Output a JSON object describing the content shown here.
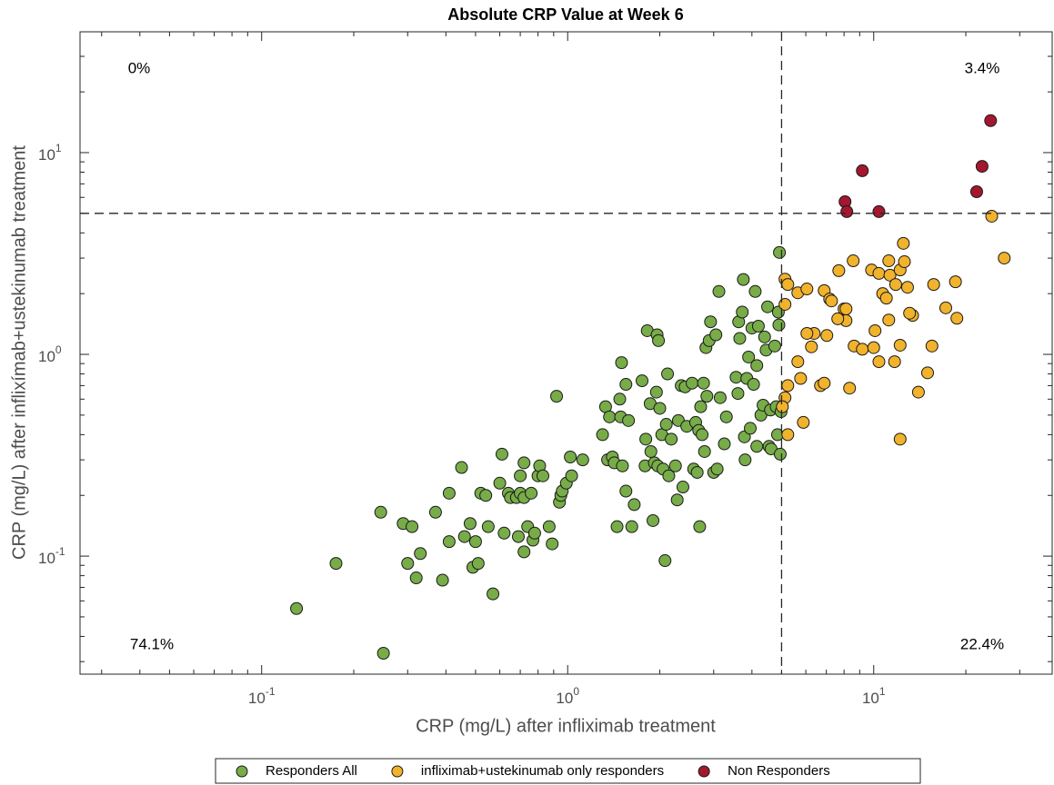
{
  "chart_data": {
    "type": "scatter",
    "title": "Absolute CRP Value at Week 6",
    "x_label": "CRP (mg/L) after infliximab treatment",
    "y_label": "CRP (mg/L) after inflixímab+ustekinumab treatment",
    "xscale": "log",
    "yscale": "log",
    "xlim": [
      0.0255,
      38.3
    ],
    "ylim": [
      0.026,
      39.7
    ],
    "xticks": [
      {
        "value": 0.1,
        "label": "10",
        "exponent": "-1"
      },
      {
        "value": 1,
        "label": "10",
        "exponent": "0"
      },
      {
        "value": 10,
        "label": "10",
        "exponent": "1"
      }
    ],
    "yticks": [
      {
        "value": 0.1,
        "label": "10",
        "exponent": "-1"
      },
      {
        "value": 1,
        "label": "10",
        "exponent": "0"
      },
      {
        "value": 10,
        "label": "10",
        "exponent": "1"
      }
    ],
    "threshold_x": 5,
    "threshold_y": 5,
    "annotations": [
      {
        "text": "0%",
        "corner": "top-left"
      },
      {
        "text": "3.4%",
        "corner": "top-right"
      },
      {
        "text": "74.1%",
        "corner": "bottom-left"
      },
      {
        "text": "22.4%",
        "corner": "bottom-right"
      }
    ],
    "legend": "bottom-outside",
    "series": [
      {
        "name": "Responders All",
        "color": "#77ac48",
        "x": [
          0.13,
          0.175,
          0.245,
          0.25,
          0.29,
          0.3,
          0.31,
          0.32,
          0.33,
          0.37,
          0.39,
          0.41,
          0.41,
          0.45,
          0.46,
          0.48,
          0.49,
          0.5,
          0.51,
          0.52,
          0.54,
          0.55,
          0.57,
          0.6,
          0.61,
          0.62,
          0.64,
          0.65,
          0.68,
          0.69,
          0.7,
          0.7,
          0.72,
          0.72,
          0.72,
          0.74,
          0.76,
          0.77,
          0.78,
          0.8,
          0.81,
          0.83,
          0.87,
          0.89,
          0.92,
          0.94,
          0.95,
          0.96,
          0.99,
          1.02,
          1.03,
          1.12,
          1.3,
          1.33,
          1.35,
          1.37,
          1.4,
          1.42,
          1.45,
          1.48,
          1.49,
          1.5,
          1.51,
          1.55,
          1.55,
          1.58,
          1.62,
          1.65,
          1.75,
          1.79,
          1.8,
          1.82,
          1.86,
          1.87,
          1.9,
          1.92,
          1.95,
          1.96,
          1.97,
          1.98,
          2.0,
          2.03,
          2.05,
          2.08,
          2.1,
          2.12,
          2.14,
          2.18,
          2.25,
          2.28,
          2.3,
          2.35,
          2.38,
          2.42,
          2.45,
          2.55,
          2.58,
          2.62,
          2.65,
          2.68,
          2.7,
          2.72,
          2.75,
          2.78,
          2.8,
          2.83,
          2.85,
          2.9,
          2.93,
          3.0,
          3.05,
          3.08,
          3.12,
          3.15,
          3.25,
          3.3,
          3.55,
          3.6,
          3.62,
          3.65,
          3.72,
          3.75,
          3.78,
          3.8,
          3.85,
          3.9,
          3.95,
          4.0,
          4.05,
          4.1,
          4.15,
          4.15,
          4.2,
          4.28,
          4.35,
          4.4,
          4.45,
          4.5,
          4.55,
          4.6,
          4.62,
          4.75,
          4.8,
          4.85,
          4.88,
          4.9,
          4.92,
          4.95,
          4.98
        ],
        "values": [
          0.055,
          0.092,
          0.165,
          0.033,
          0.145,
          0.092,
          0.14,
          0.078,
          0.103,
          0.165,
          0.076,
          0.205,
          0.118,
          0.275,
          0.125,
          0.145,
          0.088,
          0.118,
          0.092,
          0.205,
          0.2,
          0.14,
          0.065,
          0.23,
          0.32,
          0.13,
          0.205,
          0.195,
          0.195,
          0.125,
          0.25,
          0.205,
          0.29,
          0.105,
          0.195,
          0.14,
          0.205,
          0.12,
          0.13,
          0.25,
          0.28,
          0.25,
          0.14,
          0.115,
          0.62,
          0.185,
          0.2,
          0.21,
          0.23,
          0.31,
          0.25,
          0.3,
          0.4,
          0.55,
          0.3,
          0.49,
          0.31,
          0.29,
          0.14,
          0.6,
          0.49,
          0.91,
          0.28,
          0.71,
          0.21,
          0.47,
          0.14,
          0.18,
          0.74,
          0.28,
          0.38,
          1.31,
          0.57,
          0.33,
          0.15,
          0.29,
          0.65,
          1.25,
          0.28,
          1.17,
          0.54,
          0.4,
          0.27,
          0.095,
          0.45,
          0.8,
          0.25,
          0.38,
          0.28,
          0.19,
          0.47,
          0.7,
          0.22,
          0.69,
          0.44,
          0.72,
          0.27,
          0.46,
          0.26,
          0.42,
          0.14,
          0.55,
          0.4,
          0.72,
          0.33,
          1.08,
          0.62,
          1.17,
          1.45,
          0.26,
          1.25,
          0.27,
          2.05,
          0.61,
          0.36,
          0.49,
          0.77,
          0.64,
          1.45,
          1.2,
          1.62,
          2.35,
          0.39,
          0.3,
          0.76,
          0.97,
          0.43,
          1.35,
          0.71,
          2.05,
          0.35,
          0.88,
          1.38,
          0.5,
          0.56,
          1.22,
          1.05,
          1.72,
          0.35,
          0.53,
          0.34,
          1.1,
          0.55,
          0.4,
          1.62,
          1.4,
          3.2,
          0.32,
          0.52
        ]
      },
      {
        "name": "infliximab+ustekinumab only responders",
        "color": "#f1b22c",
        "x": [
          5.13,
          5.24,
          5.13,
          5.65,
          6.05,
          6.89,
          7.69,
          8.0,
          8.57,
          9.84,
          10.4,
          10.7,
          11.2,
          11.3,
          12.2,
          12.5,
          12.6,
          11.8,
          12.9,
          13.4,
          15.7,
          18.7,
          5.13,
          5.24,
          5.24,
          5.77,
          5.89,
          5.65,
          6.26,
          6.39,
          6.7,
          6.89,
          7.03,
          7.18,
          7.28,
          8.12,
          8.12,
          8.63,
          9.18,
          10.0,
          10.4,
          10.1,
          11.2,
          12.2,
          11.7,
          12.2,
          13.1,
          14.0,
          15.5,
          18.5,
          17.2,
          24.3,
          26.7,
          5.03,
          6.05,
          7.63,
          8.34,
          11.0,
          15.0
        ],
        "values": [
          2.36,
          2.22,
          1.77,
          2.02,
          2.11,
          2.07,
          2.6,
          1.68,
          2.91,
          2.62,
          2.52,
          2.0,
          2.91,
          2.47,
          2.62,
          3.55,
          2.88,
          2.22,
          2.15,
          1.56,
          2.22,
          1.51,
          0.61,
          0.7,
          0.4,
          0.76,
          0.46,
          0.92,
          1.09,
          1.27,
          0.7,
          0.72,
          1.24,
          1.88,
          1.84,
          1.47,
          1.68,
          1.1,
          1.06,
          1.08,
          0.92,
          1.31,
          1.48,
          1.11,
          0.92,
          0.38,
          1.6,
          0.65,
          1.1,
          2.29,
          1.7,
          4.84,
          3.0,
          0.55,
          1.27,
          1.5,
          0.68,
          1.9,
          0.81
        ]
      },
      {
        "name": "Non Responders",
        "color": "#a3172f",
        "x": [
          8.06,
          8.17,
          9.18,
          10.4,
          24.1,
          22.6,
          21.7
        ],
        "values": [
          5.71,
          5.1,
          8.13,
          5.1,
          14.4,
          8.55,
          6.4
        ]
      }
    ]
  }
}
